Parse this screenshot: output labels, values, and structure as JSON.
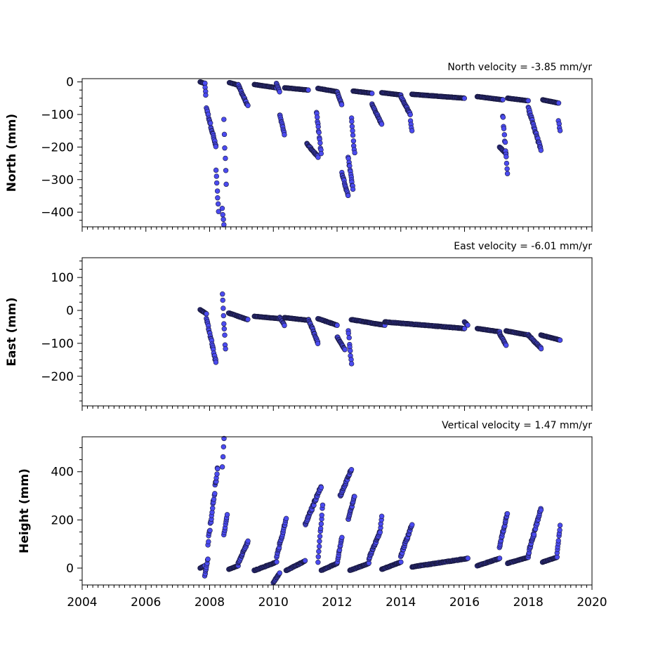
{
  "chart_data": [
    {
      "type": "scatter",
      "panel": "north",
      "ylabel": "North (mm)",
      "annotation": "North velocity = -3.85 mm/yr",
      "xlim": [
        2004,
        2020
      ],
      "ylim": [
        -445,
        10
      ],
      "yticks": [
        0,
        -100,
        -200,
        -300,
        -400
      ],
      "ytick_labels": [
        "0",
        "−100",
        "−200",
        "−300",
        "−400"
      ],
      "marker_color": "#4b4bf0",
      "segments": [
        [
          2007.7,
          2007.85,
          0,
          -5
        ],
        [
          2007.85,
          2007.88,
          -5,
          -40
        ],
        [
          2007.9,
          2008.2,
          -80,
          -200
        ],
        [
          2008.2,
          2008.28,
          -270,
          -400
        ],
        [
          2008.4,
          2008.45,
          -390,
          -440
        ],
        [
          2008.45,
          2008.52,
          -120,
          -320
        ],
        [
          2008.62,
          2008.9,
          -2,
          -10
        ],
        [
          2008.9,
          2009.2,
          -10,
          -75
        ],
        [
          2009.4,
          2010.1,
          -8,
          -18
        ],
        [
          2010.1,
          2010.2,
          -5,
          -30
        ],
        [
          2010.2,
          2010.35,
          -100,
          -160
        ],
        [
          2010.35,
          2011.1,
          -18,
          -25
        ],
        [
          2011.05,
          2011.4,
          -190,
          -230
        ],
        [
          2011.35,
          2011.5,
          -90,
          -220
        ],
        [
          2011.4,
          2012.0,
          -20,
          -30
        ],
        [
          2012.0,
          2012.15,
          -30,
          -70
        ],
        [
          2012.15,
          2012.35,
          -280,
          -350
        ],
        [
          2012.35,
          2012.5,
          -230,
          -330
        ],
        [
          2012.45,
          2012.55,
          -110,
          -220
        ],
        [
          2012.5,
          2013.1,
          -28,
          -35
        ],
        [
          2013.1,
          2013.4,
          -70,
          -130
        ],
        [
          2013.4,
          2014.0,
          -33,
          -40
        ],
        [
          2014.0,
          2014.3,
          -45,
          -100
        ],
        [
          2014.3,
          2014.35,
          -120,
          -150
        ],
        [
          2014.35,
          2016.0,
          -38,
          -50
        ],
        [
          2016.4,
          2017.2,
          -45,
          -55
        ],
        [
          2017.1,
          2017.3,
          -200,
          -220
        ],
        [
          2017.2,
          2017.35,
          -100,
          -280
        ],
        [
          2017.35,
          2018.0,
          -50,
          -58
        ],
        [
          2018.0,
          2018.4,
          -80,
          -210
        ],
        [
          2018.45,
          2018.95,
          -55,
          -65
        ],
        [
          2018.95,
          2019.0,
          -120,
          -150
        ]
      ]
    },
    {
      "type": "scatter",
      "panel": "east",
      "ylabel": "East (mm)",
      "annotation": "East velocity = -6.01 mm/yr",
      "xlim": [
        2004,
        2020
      ],
      "ylim": [
        -290,
        160
      ],
      "yticks": [
        100,
        0,
        -100,
        -200
      ],
      "ytick_labels": [
        "100",
        "0",
        "−100",
        "−200"
      ],
      "marker_color": "#4b4bf0",
      "segments": [
        [
          2007.7,
          2007.9,
          2,
          -10
        ],
        [
          2007.9,
          2008.2,
          -20,
          -160
        ],
        [
          2008.4,
          2008.5,
          45,
          -120
        ],
        [
          2008.6,
          2009.2,
          -8,
          -28
        ],
        [
          2009.4,
          2010.2,
          -18,
          -25
        ],
        [
          2010.2,
          2010.35,
          -20,
          -45
        ],
        [
          2010.35,
          2011.1,
          -22,
          -30
        ],
        [
          2011.1,
          2011.4,
          -25,
          -100
        ],
        [
          2011.4,
          2012.0,
          -25,
          -45
        ],
        [
          2012.0,
          2012.25,
          -80,
          -120
        ],
        [
          2012.35,
          2012.45,
          -60,
          -165
        ],
        [
          2012.45,
          2013.5,
          -28,
          -45
        ],
        [
          2013.5,
          2016.0,
          -35,
          -55
        ],
        [
          2016.0,
          2016.1,
          -35,
          -45
        ],
        [
          2016.4,
          2017.1,
          -55,
          -65
        ],
        [
          2017.1,
          2017.3,
          -70,
          -105
        ],
        [
          2017.3,
          2018.0,
          -62,
          -75
        ],
        [
          2018.0,
          2018.4,
          -75,
          -115
        ],
        [
          2018.4,
          2019.0,
          -75,
          -90
        ]
      ]
    },
    {
      "type": "scatter",
      "panel": "vertical",
      "ylabel": "Height (mm)",
      "annotation": "Vertical velocity = 1.47 mm/yr",
      "xlim": [
        2004,
        2020
      ],
      "ylim": [
        -70,
        545
      ],
      "yticks": [
        0,
        200,
        400
      ],
      "ytick_labels": [
        "0",
        "200",
        "400"
      ],
      "marker_color": "#4b4bf0",
      "segments": [
        [
          2007.7,
          2007.85,
          0,
          10
        ],
        [
          2007.85,
          2007.95,
          -30,
          40
        ],
        [
          2007.95,
          2008.25,
          100,
          420
        ],
        [
          2008.4,
          2008.45,
          420,
          540
        ],
        [
          2008.45,
          2008.55,
          140,
          220
        ],
        [
          2008.6,
          2008.9,
          -5,
          10
        ],
        [
          2008.9,
          2009.2,
          20,
          110
        ],
        [
          2009.4,
          2010.1,
          -10,
          25
        ],
        [
          2010.1,
          2010.4,
          50,
          200
        ],
        [
          2010.0,
          2010.2,
          -60,
          -20
        ],
        [
          2010.4,
          2011.0,
          -10,
          30
        ],
        [
          2011.0,
          2011.5,
          180,
          340
        ],
        [
          2011.4,
          2011.55,
          30,
          260
        ],
        [
          2011.5,
          2012.0,
          -10,
          20
        ],
        [
          2012.0,
          2012.15,
          20,
          130
        ],
        [
          2012.1,
          2012.45,
          300,
          410
        ],
        [
          2012.35,
          2012.55,
          200,
          300
        ],
        [
          2012.4,
          2013.0,
          -10,
          20
        ],
        [
          2013.0,
          2013.35,
          40,
          150
        ],
        [
          2013.35,
          2013.4,
          150,
          215
        ],
        [
          2013.4,
          2014.0,
          -5,
          25
        ],
        [
          2014.0,
          2014.35,
          50,
          180
        ],
        [
          2014.35,
          2016.1,
          5,
          40
        ],
        [
          2016.4,
          2017.1,
          10,
          40
        ],
        [
          2017.1,
          2017.35,
          90,
          230
        ],
        [
          2017.35,
          2018.0,
          20,
          45
        ],
        [
          2018.0,
          2018.4,
          60,
          245
        ],
        [
          2018.45,
          2018.9,
          25,
          45
        ],
        [
          2018.9,
          2019.0,
          60,
          175
        ]
      ]
    }
  ],
  "shared_xaxis": {
    "ticks": [
      2004,
      2006,
      2008,
      2010,
      2012,
      2014,
      2016,
      2018,
      2020
    ],
    "tick_labels": [
      "2004",
      "2006",
      "2008",
      "2010",
      "2012",
      "2014",
      "2016",
      "2018",
      "2020"
    ]
  }
}
